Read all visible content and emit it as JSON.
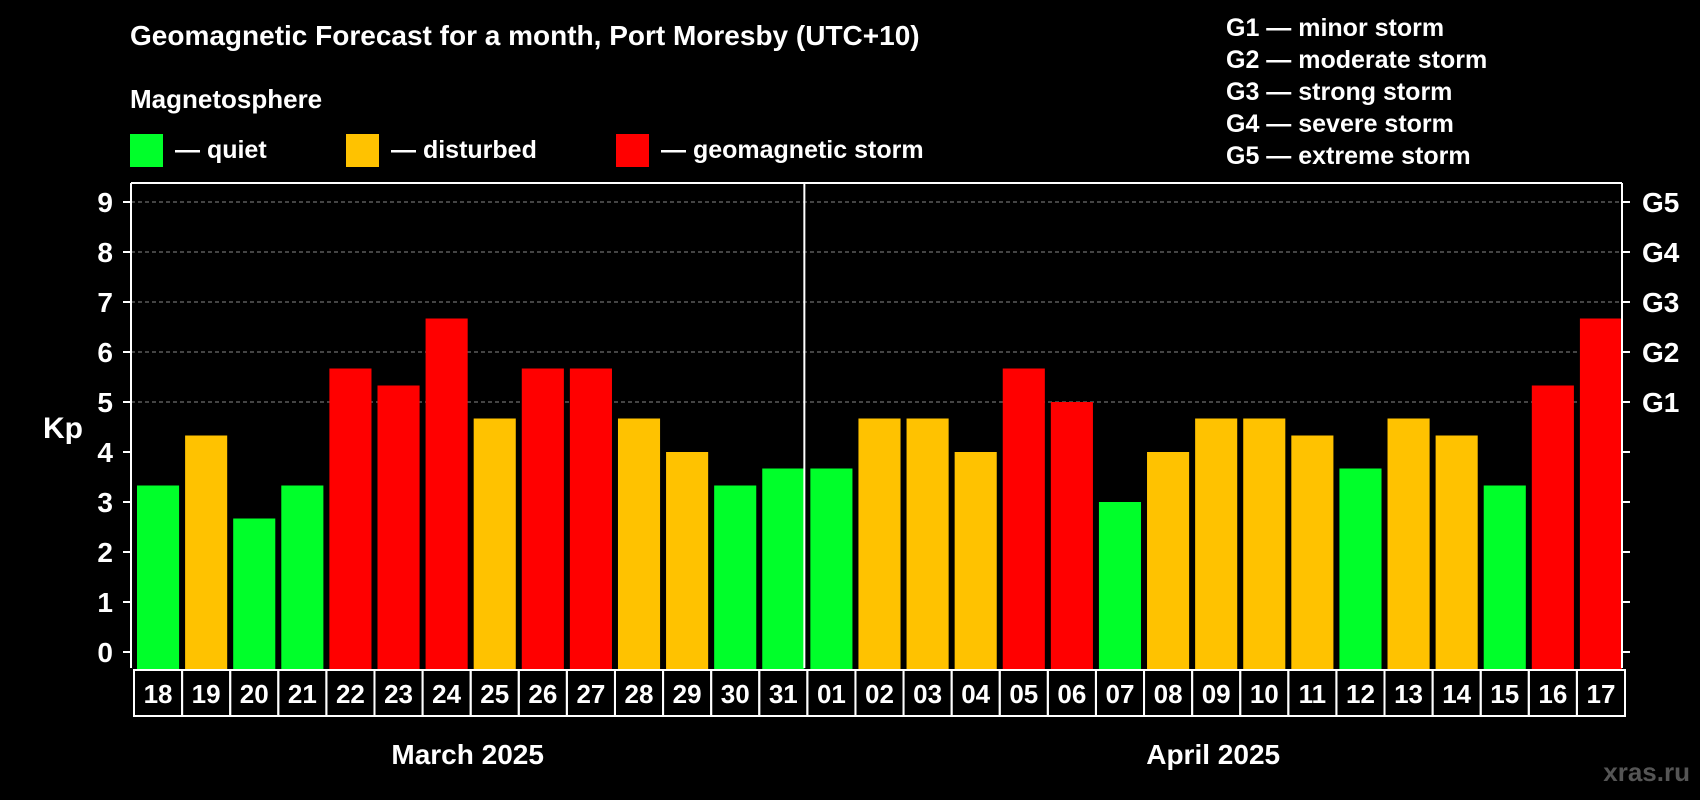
{
  "title": "Geomagnetic Forecast for a month, Port Moresby (UTC+10)",
  "subtitle": "Magnetosphere",
  "legend": [
    {
      "label": "— quiet",
      "color": "#00ff2a"
    },
    {
      "label": "— disturbed",
      "color": "#ffc200"
    },
    {
      "label": "— geomagnetic storm",
      "color": "#ff0000"
    }
  ],
  "storm_scale": [
    "G1 — minor storm",
    "G2 — moderate storm",
    "G3 — strong storm",
    "G4 — severe storm",
    "G5 — extreme storm"
  ],
  "watermark": "xras.ru",
  "chart_data": {
    "type": "bar",
    "ylabel": "Kp",
    "ylim": [
      0,
      9
    ],
    "yticks": [
      "0",
      "1",
      "2",
      "3",
      "4",
      "5",
      "6",
      "7",
      "8",
      "9"
    ],
    "right_axis_labels": [
      {
        "kp": 5,
        "label": "G1"
      },
      {
        "kp": 6,
        "label": "G2"
      },
      {
        "kp": 7,
        "label": "G3"
      },
      {
        "kp": 8,
        "label": "G4"
      },
      {
        "kp": 9,
        "label": "G5"
      }
    ],
    "grid": "horizontal dashed at Kp 5–9",
    "categories": [
      "18",
      "19",
      "20",
      "21",
      "22",
      "23",
      "24",
      "25",
      "26",
      "27",
      "28",
      "29",
      "30",
      "31",
      "01",
      "02",
      "03",
      "04",
      "05",
      "06",
      "07",
      "08",
      "09",
      "10",
      "11",
      "12",
      "13",
      "14",
      "15",
      "16",
      "17"
    ],
    "values": [
      3.33,
      4.33,
      2.67,
      3.33,
      5.67,
      5.33,
      6.67,
      4.67,
      5.67,
      5.67,
      4.67,
      4.0,
      3.33,
      3.67,
      3.67,
      4.67,
      4.67,
      4.0,
      5.67,
      5.0,
      3.0,
      4.0,
      4.67,
      4.67,
      4.33,
      3.67,
      4.67,
      4.33,
      3.33,
      5.33,
      6.67
    ],
    "colors": {
      "quiet": "#00ff2a",
      "disturbed": "#ffc200",
      "storm": "#ff0000"
    },
    "month_groups": [
      {
        "label": "March 2025",
        "count": 14
      },
      {
        "label": "April 2025",
        "count": 17
      }
    ]
  }
}
